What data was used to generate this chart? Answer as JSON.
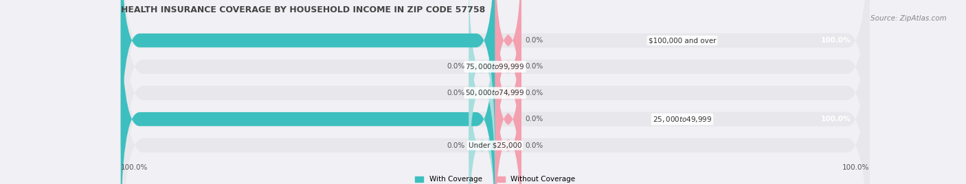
{
  "title": "HEALTH INSURANCE COVERAGE BY HOUSEHOLD INCOME IN ZIP CODE 57758",
  "source": "Source: ZipAtlas.com",
  "categories": [
    "Under $25,000",
    "$25,000 to $49,999",
    "$50,000 to $74,999",
    "$75,000 to $99,999",
    "$100,000 and over"
  ],
  "with_coverage": [
    0.0,
    100.0,
    0.0,
    0.0,
    100.0
  ],
  "without_coverage": [
    0.0,
    0.0,
    0.0,
    0.0,
    0.0
  ],
  "color_with": "#3dbfbf",
  "color_without": "#f4a0b0",
  "color_with_light": "#a8dede",
  "color_bar_bg": "#e8e8ec",
  "bar_height": 0.55,
  "figsize": [
    14.06,
    2.69
  ],
  "dpi": 100,
  "xlim": [
    -100,
    100
  ],
  "title_fontsize": 9,
  "label_fontsize": 7.5,
  "tick_fontsize": 7.5,
  "source_fontsize": 7.5
}
